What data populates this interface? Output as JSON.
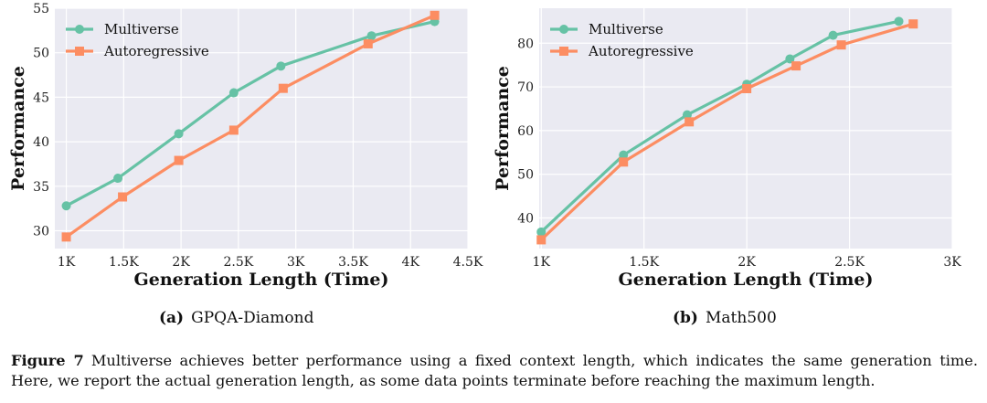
{
  "colors": {
    "multiverse": "#66c2a5",
    "autoregressive": "#fc8d62",
    "plot_bg": "#eaeaf2",
    "grid": "#ffffff"
  },
  "chart_data": [
    {
      "type": "line",
      "xlabel": "Generation Length (Time)",
      "ylabel": "Performance",
      "xlim": [
        900,
        4500
      ],
      "ylim": [
        28,
        55
      ],
      "x_ticks": [
        1000,
        1500,
        2000,
        2500,
        3000,
        3500,
        4000,
        4500
      ],
      "x_tick_labels": [
        "1K",
        "1.5K",
        "2K",
        "2.5K",
        "3K",
        "3.5K",
        "4K",
        "4.5K"
      ],
      "y_ticks": [
        30,
        35,
        40,
        45,
        50,
        55
      ],
      "y_tick_labels": [
        "30",
        "35",
        "40",
        "45",
        "50",
        "55"
      ],
      "legend_position": "top-left",
      "grid": true,
      "series": [
        {
          "name": "Multiverse",
          "marker": "circle",
          "x": [
            1000,
            1450,
            1980,
            2460,
            2870,
            3660,
            4210
          ],
          "y": [
            32.8,
            35.9,
            40.9,
            45.5,
            48.5,
            51.9,
            53.5
          ]
        },
        {
          "name": "Autoregressive",
          "marker": "square",
          "x": [
            1000,
            1490,
            1980,
            2460,
            2890,
            3630,
            4210
          ],
          "y": [
            29.3,
            33.8,
            37.9,
            41.3,
            46.0,
            51.0,
            54.2
          ]
        }
      ]
    },
    {
      "type": "line",
      "xlabel": "Generation Length (Time)",
      "ylabel": "Performance",
      "xlim": [
        990,
        3000
      ],
      "ylim": [
        33,
        88
      ],
      "x_ticks": [
        1000,
        1500,
        2000,
        2500,
        3000
      ],
      "x_tick_labels": [
        "1K",
        "1.5K",
        "2K",
        "2.5K",
        "3K"
      ],
      "y_ticks": [
        40,
        50,
        60,
        70,
        80
      ],
      "y_tick_labels": [
        "40",
        "50",
        "60",
        "70",
        "80"
      ],
      "legend_position": "top-left",
      "grid": true,
      "series": [
        {
          "name": "Multiverse",
          "marker": "circle",
          "x": [
            1000,
            1400,
            1710,
            2000,
            2210,
            2420,
            2740
          ],
          "y": [
            36.8,
            54.4,
            63.6,
            70.6,
            76.4,
            81.8,
            85.0
          ]
        },
        {
          "name": "Autoregressive",
          "marker": "square",
          "x": [
            1000,
            1400,
            1720,
            2000,
            2240,
            2460,
            2810
          ],
          "y": [
            35.0,
            52.8,
            62.0,
            69.6,
            74.8,
            79.6,
            84.4
          ]
        }
      ]
    }
  ],
  "subcaptions": [
    {
      "label": "(a)",
      "text": "GPQA-Diamond"
    },
    {
      "label": "(b)",
      "text": "Math500"
    }
  ],
  "figure_caption": {
    "label": "Figure 7",
    "text": "Multiverse achieves better performance using a fixed context length, which indicates the same generation time. Here, we report the actual generation length, as some data points terminate before reaching the maximum length."
  }
}
